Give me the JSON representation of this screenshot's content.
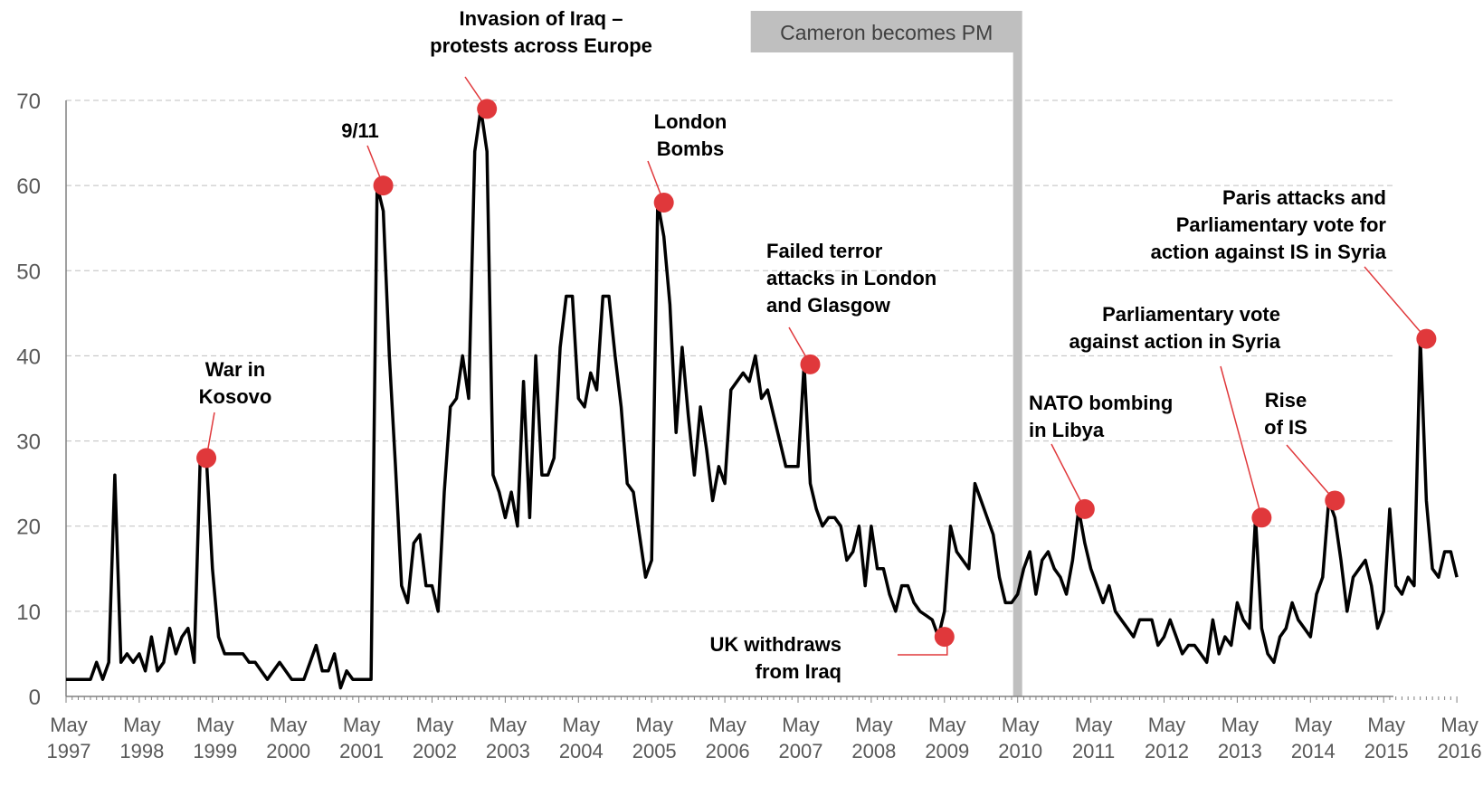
{
  "chart_data": {
    "type": "line",
    "title": "",
    "xlabel": "",
    "ylabel": "",
    "ylim": [
      0,
      70
    ],
    "yticks": [
      "0",
      "10",
      "20",
      "30",
      "40",
      "50",
      "60",
      "70"
    ],
    "xticks": [
      [
        "May",
        "1997"
      ],
      [
        "May",
        "1998"
      ],
      [
        "May",
        "1999"
      ],
      [
        "May",
        "2000"
      ],
      [
        "May",
        "2001"
      ],
      [
        "May",
        "2002"
      ],
      [
        "May",
        "2003"
      ],
      [
        "May",
        "2004"
      ],
      [
        "May",
        "2005"
      ],
      [
        "May",
        "2006"
      ],
      [
        "May",
        "2007"
      ],
      [
        "May",
        "2008"
      ],
      [
        "May",
        "2009"
      ],
      [
        "May",
        "2010"
      ],
      [
        "May",
        "2011"
      ],
      [
        "May",
        "2012"
      ],
      [
        "May",
        "2013"
      ],
      [
        "May",
        "2014"
      ],
      [
        "May",
        "2015"
      ],
      [
        "May",
        "2016"
      ]
    ],
    "grid": true,
    "series": [
      {
        "x_start": "1997-05",
        "x_step": "month",
        "color": "#000000",
        "values": [
          2,
          2,
          2,
          2,
          2,
          4,
          2,
          4,
          26,
          4,
          5,
          4,
          5,
          3,
          7,
          3,
          4,
          8,
          5,
          7,
          8,
          4,
          28,
          28,
          15,
          7,
          5,
          5,
          5,
          5,
          4,
          4,
          3,
          2,
          3,
          4,
          3,
          2,
          2,
          2,
          4,
          6,
          3,
          3,
          5,
          1,
          3,
          2,
          2,
          2,
          2,
          60,
          57,
          40,
          27,
          13,
          11,
          18,
          19,
          13,
          13,
          10,
          24,
          34,
          35,
          40,
          35,
          64,
          69,
          64,
          26,
          24,
          21,
          24,
          20,
          37,
          21,
          40,
          26,
          26,
          28,
          41,
          47,
          47,
          35,
          34,
          38,
          36,
          47,
          47,
          40,
          34,
          25,
          24,
          19,
          14,
          16,
          58,
          54,
          46,
          31,
          41,
          33,
          26,
          34,
          29,
          23,
          27,
          25,
          36,
          37,
          38,
          37,
          40,
          35,
          36,
          33,
          30,
          27,
          27,
          27,
          39,
          25,
          22,
          20,
          21,
          21,
          20,
          16,
          17,
          20,
          13,
          20,
          15,
          15,
          12,
          10,
          13,
          13,
          11,
          10,
          9.5,
          9,
          7,
          10,
          20,
          17,
          16,
          15,
          25,
          23,
          21,
          19,
          14,
          11,
          11,
          12,
          15,
          17,
          12,
          16,
          17,
          15,
          14,
          12,
          16,
          22,
          18,
          15,
          13,
          11,
          13,
          10,
          9,
          8,
          7,
          9,
          9,
          9,
          6,
          7,
          9,
          7,
          5,
          6,
          6,
          5,
          4,
          9,
          5,
          7,
          6,
          11,
          9,
          8,
          21,
          8,
          5,
          4,
          7,
          8,
          11,
          9,
          8,
          7,
          12,
          14,
          23,
          21,
          16,
          10,
          14,
          15,
          16,
          13,
          8,
          10,
          22,
          13,
          12,
          14,
          13,
          42,
          23,
          15,
          14,
          17,
          17,
          14
        ]
      }
    ],
    "events": [
      {
        "label": [
          "War in",
          "Kosovo"
        ],
        "date": "1999-04",
        "value": 28
      },
      {
        "label": [
          "9/11"
        ],
        "date": "2001-09",
        "value": 60
      },
      {
        "label": [
          "Invasion of Iraq –",
          "protests across Europe"
        ],
        "date": "2003-02",
        "value": 69
      },
      {
        "label": [
          "London",
          "Bombs"
        ],
        "date": "2005-07",
        "value": 58
      },
      {
        "label": [
          "Failed terror",
          "attacks in London",
          "and Glasgow"
        ],
        "date": "2007-07",
        "value": 39
      },
      {
        "label": [
          "UK withdraws",
          "from Iraq"
        ],
        "date": "2009-05",
        "value": 7
      },
      {
        "label": [
          "NATO bombing",
          "in Libya"
        ],
        "date": "2011-04",
        "value": 22
      },
      {
        "label": [
          "Parliamentary vote",
          "against action in Syria"
        ],
        "date": "2013-09",
        "value": 21
      },
      {
        "label": [
          "Rise",
          "of IS"
        ],
        "date": "2014-09",
        "value": 23
      },
      {
        "label": [
          "Paris attacks and",
          "Parliamentary vote for",
          "action against IS in Syria"
        ],
        "date": "2015-12",
        "value": 42
      }
    ],
    "marker": {
      "label": "Cameron becomes PM",
      "date": "2010-05"
    },
    "colors": {
      "line": "#000000",
      "event": "#e0383b",
      "marker": "#bfbfbf",
      "axis": "#808080"
    }
  }
}
